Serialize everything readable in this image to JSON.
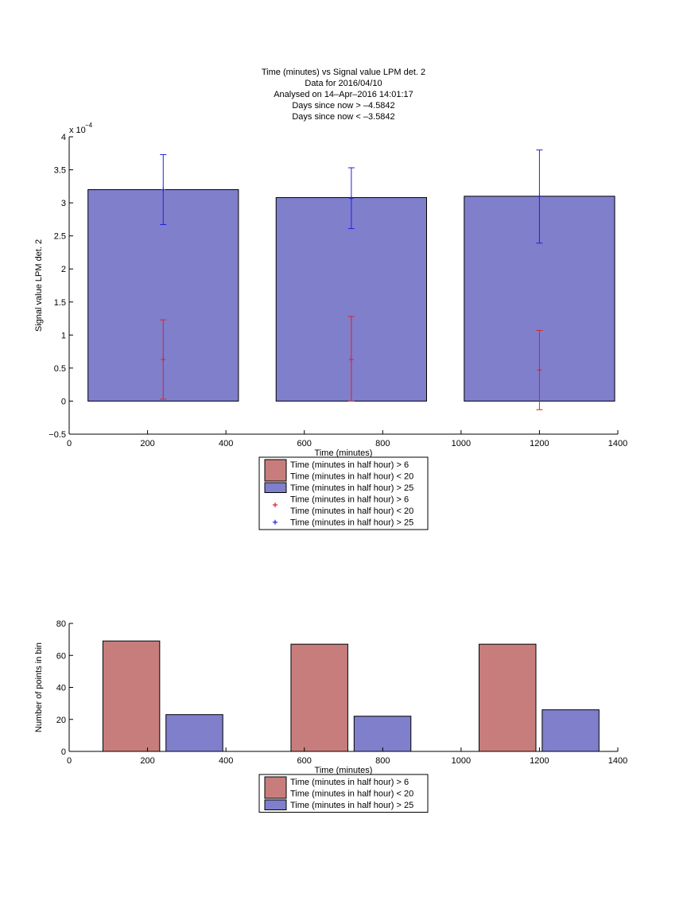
{
  "colors": {
    "bar_low": "#c87d7d",
    "bar_high": "#7f7fcc",
    "err_low": "#dd2222",
    "err_high": "#2222dd"
  },
  "chart_data": [
    {
      "type": "bar",
      "title_lines": [
        "Time (minutes) vs Signal value LPM det. 2",
        "Data for 2016/04/10",
        "Analysed on 14–Apr–2016 14:01:17",
        "Days since now > –4.5842",
        "Days since now < –3.5842"
      ],
      "xlabel": "Time (minutes)",
      "ylabel": "Signal value LPM det. 2",
      "y_multiplier": "x 10",
      "y_multiplier_exp": "−4",
      "xlim": [
        0,
        1400
      ],
      "ylim": [
        -0.5,
        4
      ],
      "xticks": [
        "0",
        "200",
        "400",
        "600",
        "800",
        "1000",
        "1200",
        "1400"
      ],
      "xtick_values": [
        0,
        200,
        400,
        600,
        800,
        1000,
        1200,
        1400
      ],
      "yticks": [
        "−0.5",
        "0",
        "0.5",
        "1",
        "1.5",
        "2",
        "2.5",
        "3",
        "3.5",
        "4"
      ],
      "ytick_values": [
        -0.5,
        0,
        0.5,
        1,
        1.5,
        2,
        2.5,
        3,
        3.5,
        4
      ],
      "bars": [
        {
          "x_start": 48,
          "x_end": 432,
          "value": 3.2
        },
        {
          "x_start": 528,
          "x_end": 912,
          "value": 3.08
        },
        {
          "x_start": 1008,
          "x_end": 1392,
          "value": 3.1
        }
      ],
      "errorbars": [
        {
          "series": "low",
          "points": [
            {
              "x": 240,
              "y": 0.63,
              "low": 0.03,
              "high": 1.23
            },
            {
              "x": 720,
              "y": 0.63,
              "low": 0.0,
              "high": 1.28
            },
            {
              "x": 1200,
              "y": 0.47,
              "low": -0.13,
              "high": 1.07
            }
          ]
        },
        {
          "series": "high",
          "points": [
            {
              "x": 240,
              "y": 3.2,
              "low": 2.67,
              "high": 3.73
            },
            {
              "x": 720,
              "y": 3.07,
              "low": 2.61,
              "high": 3.53
            },
            {
              "x": 1200,
              "y": 3.1,
              "low": 2.39,
              "high": 3.8
            }
          ]
        }
      ],
      "legend": [
        {
          "kind": "patch",
          "color": "bar_low",
          "line1": "Time (minutes in half hour) > 6",
          "line2": "Time (minutes in half hour) < 20"
        },
        {
          "kind": "patch",
          "color": "bar_high",
          "line1": "Time (minutes in half hour) > 25"
        },
        {
          "kind": "marker",
          "color": "err_low",
          "line1": "Time (minutes in half hour) > 6",
          "line2": "Time (minutes in half hour) < 20"
        },
        {
          "kind": "marker",
          "color": "err_high",
          "line1": "Time (minutes in half hour) > 25"
        }
      ]
    },
    {
      "type": "bar",
      "xlabel": "Time (minutes)",
      "ylabel": "Number of points in bin",
      "xlim": [
        0,
        1400
      ],
      "ylim": [
        0,
        80
      ],
      "xticks": [
        "0",
        "200",
        "400",
        "600",
        "800",
        "1000",
        "1200",
        "1400"
      ],
      "xtick_values": [
        0,
        200,
        400,
        600,
        800,
        1000,
        1200,
        1400
      ],
      "yticks": [
        "0",
        "20",
        "40",
        "60",
        "80"
      ],
      "ytick_values": [
        0,
        20,
        40,
        60,
        80
      ],
      "bars": [
        {
          "series": "low",
          "x_start": 86,
          "x_end": 231,
          "value": 69
        },
        {
          "series": "high",
          "x_start": 247,
          "x_end": 392,
          "value": 23
        },
        {
          "series": "low",
          "x_start": 566,
          "x_end": 711,
          "value": 67
        },
        {
          "series": "high",
          "x_start": 727,
          "x_end": 872,
          "value": 22
        },
        {
          "series": "low",
          "x_start": 1046,
          "x_end": 1191,
          "value": 67
        },
        {
          "series": "high",
          "x_start": 1207,
          "x_end": 1352,
          "value": 26
        }
      ],
      "legend": [
        {
          "kind": "patch",
          "color": "bar_low",
          "line1": "Time (minutes in half hour) > 6",
          "line2": "Time (minutes in half hour) < 20"
        },
        {
          "kind": "patch",
          "color": "bar_high",
          "line1": "Time (minutes in half hour) > 25"
        }
      ]
    }
  ]
}
